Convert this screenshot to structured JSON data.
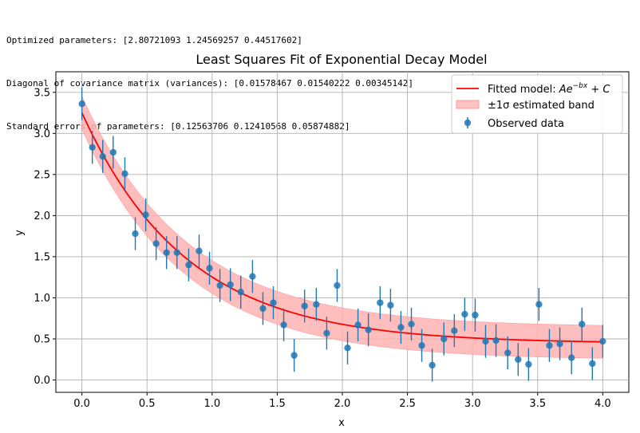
{
  "output": {
    "line1": "Optimized parameters: [2.80721093 1.24569257 0.44517602]",
    "line2": "Diagonal of covariance matrix (variances): [0.01578467 0.01540222 0.00345142]",
    "line3": "Standard errors of parameters: [0.12563706 0.12410568 0.05874882]"
  },
  "colors": {
    "fit": "#ff0000",
    "band": "#ffb3b3",
    "points": "#1f77b4",
    "grid": "#b0b0b0"
  },
  "chart_data": {
    "type": "scatter",
    "title": "Least Squares Fit of Exponential Decay Model",
    "xlabel": "x",
    "ylabel": "y",
    "xlim": [
      -0.2,
      4.2
    ],
    "ylim": [
      -0.15,
      3.75
    ],
    "xticks": [
      0.0,
      0.5,
      1.0,
      1.5,
      2.0,
      2.5,
      3.0,
      3.5,
      4.0
    ],
    "xtick_labels": [
      "0.0",
      "0.5",
      "1.0",
      "1.5",
      "2.0",
      "2.5",
      "3.0",
      "3.5",
      "4.0"
    ],
    "yticks": [
      0.0,
      0.5,
      1.0,
      1.5,
      2.0,
      2.5,
      3.0,
      3.5
    ],
    "ytick_labels": [
      "0.0",
      "0.5",
      "1.0",
      "1.5",
      "2.0",
      "2.5",
      "3.0",
      "3.5"
    ],
    "grid": true,
    "legend_position": "top-right",
    "fit": {
      "A": 2.80721093,
      "b": 1.24569257,
      "C": 0.44517602,
      "band_sigma": 0.2
    },
    "error_bar": 0.2,
    "series": [
      {
        "name": "Observed data",
        "x": [
          0.0,
          0.08,
          0.16,
          0.24,
          0.33,
          0.41,
          0.49,
          0.57,
          0.65,
          0.73,
          0.82,
          0.9,
          0.98,
          1.06,
          1.14,
          1.22,
          1.31,
          1.39,
          1.47,
          1.55,
          1.63,
          1.71,
          1.8,
          1.88,
          1.96,
          2.04,
          2.12,
          2.2,
          2.29,
          2.37,
          2.45,
          2.53,
          2.61,
          2.69,
          2.78,
          2.86,
          2.94,
          3.02,
          3.1,
          3.18,
          3.27,
          3.35,
          3.43,
          3.51,
          3.59,
          3.67,
          3.76,
          3.84,
          3.92,
          4.0
        ],
        "y": [
          3.36,
          2.83,
          2.72,
          2.77,
          2.51,
          1.78,
          2.01,
          1.66,
          1.55,
          1.55,
          1.4,
          1.57,
          1.36,
          1.15,
          1.16,
          1.07,
          1.26,
          0.87,
          0.94,
          0.67,
          0.3,
          0.9,
          0.92,
          0.57,
          1.15,
          0.39,
          0.67,
          0.61,
          0.94,
          0.91,
          0.64,
          0.68,
          0.42,
          0.18,
          0.5,
          0.6,
          0.8,
          0.79,
          0.47,
          0.48,
          0.33,
          0.25,
          0.19,
          0.92,
          0.42,
          0.44,
          0.27,
          0.68,
          0.2,
          0.47
        ]
      }
    ],
    "legend": [
      {
        "label": "Fitted model: ",
        "math": "Ae",
        "sup": "−bx",
        "tail": " + C"
      },
      {
        "label": "±1σ estimated band"
      },
      {
        "label": "Observed data"
      }
    ]
  }
}
